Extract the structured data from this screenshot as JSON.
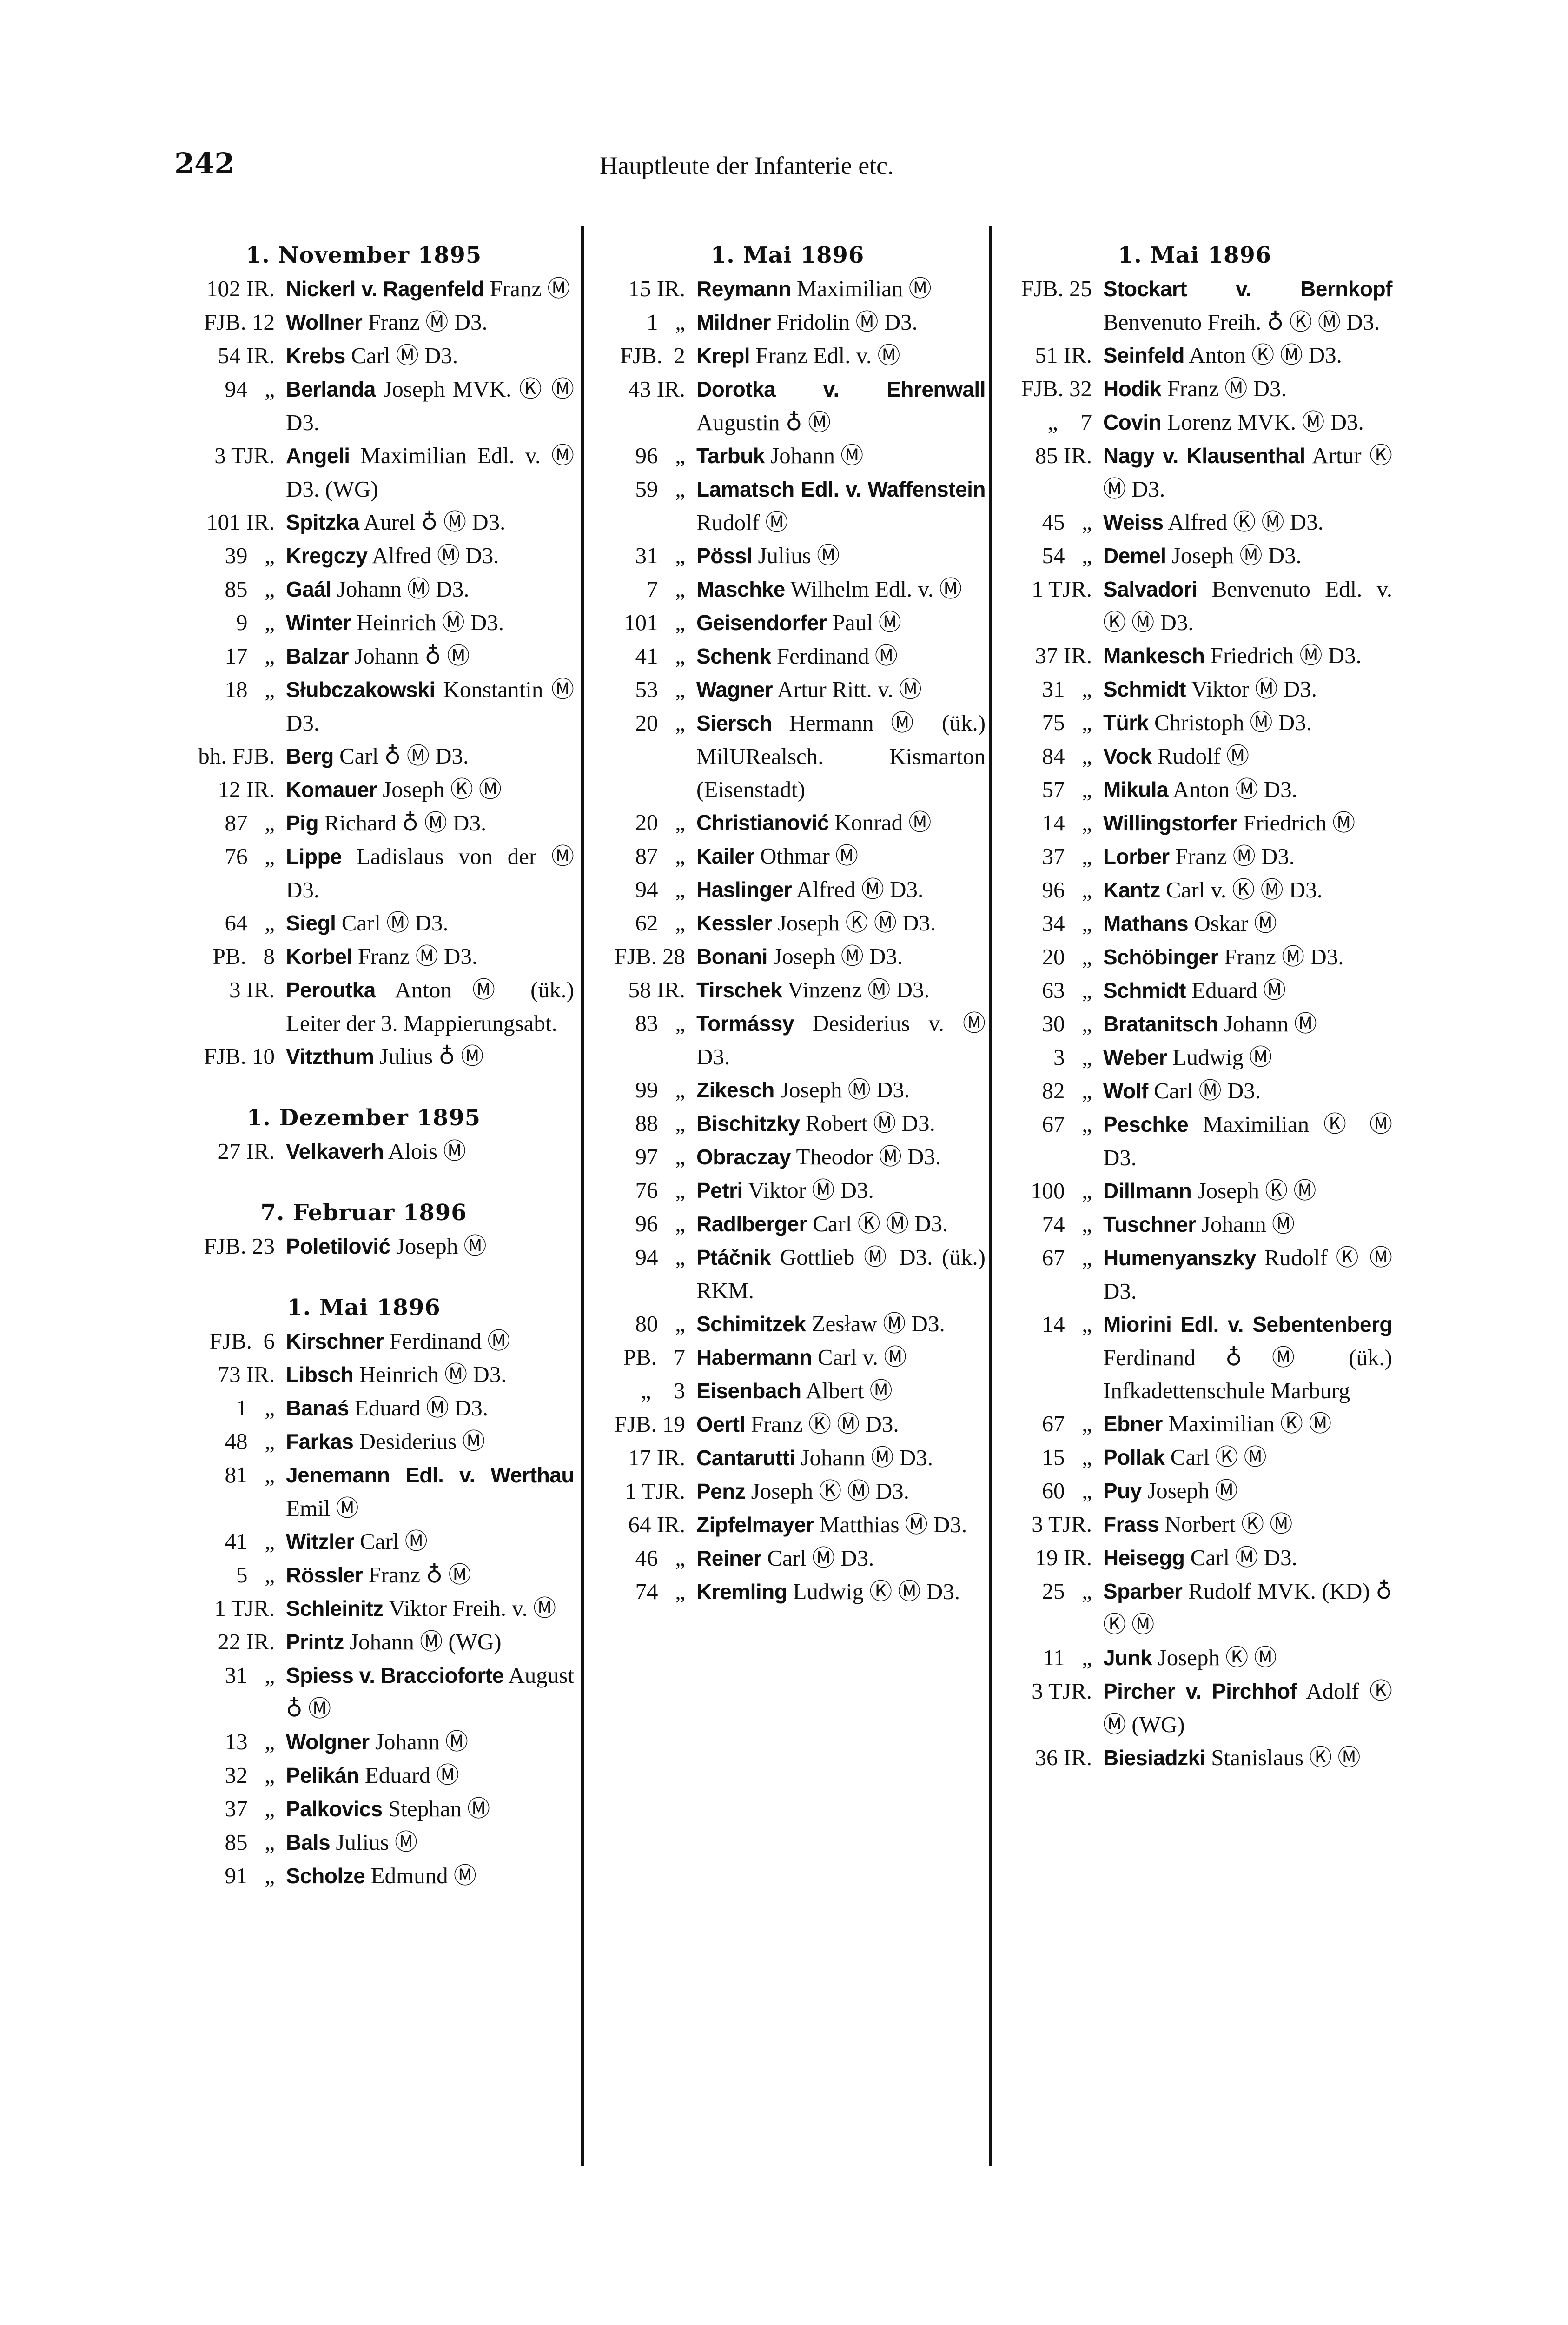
{
  "page_number": "242",
  "running_head": "Hauptleute der Infanterie etc.",
  "symbols": {
    "Ⓜ": "medal-m-icon",
    "Ⓚ": "medal-k-icon",
    "♁": "crowned-order-icon"
  },
  "columns": [
    {
      "sections": [
        {
          "heading": "1. November 1895",
          "entries": [
            {
              "ref": "102 IR.",
              "name": "Nickerl v. Ragenfeld",
              "rest": "Franz Ⓜ"
            },
            {
              "ref": "FJB. 12",
              "name": "Wollner",
              "rest": "Franz Ⓜ D3."
            },
            {
              "ref": "54 IR.",
              "name": "Krebs",
              "rest": "Carl Ⓜ D3."
            },
            {
              "ref": "94   „",
              "name": "Berlanda",
              "rest": "Joseph MVK. Ⓚ Ⓜ D3."
            },
            {
              "ref": "3 TJR.",
              "name": "Angeli",
              "rest": "Maximilian Edl. v. Ⓜ D3. (WG)"
            },
            {
              "ref": "101 IR.",
              "name": "Spitzka",
              "rest": "Aurel ♁ Ⓜ D3."
            },
            {
              "ref": "39   „",
              "name": "Kregczy",
              "rest": "Alfred Ⓜ D3."
            },
            {
              "ref": "85   „",
              "name": "Gaál",
              "rest": "Johann Ⓜ D3."
            },
            {
              "ref": "9   „",
              "name": "Winter",
              "rest": "Heinrich Ⓜ D3."
            },
            {
              "ref": "17   „",
              "name": "Balzar",
              "rest": "Johann ♁ Ⓜ"
            },
            {
              "ref": "18   „",
              "name": "Słubczakowski",
              "rest": "Kon­stantin Ⓜ D3."
            },
            {
              "ref": "bh. FJB.",
              "name": "Berg",
              "rest": "Carl ♁ Ⓜ D3."
            },
            {
              "ref": "12 IR.",
              "name": "Komauer",
              "rest": "Joseph Ⓚ Ⓜ"
            },
            {
              "ref": "87   „",
              "name": "Pig",
              "rest": "Richard ♁ Ⓜ D3."
            },
            {
              "ref": "76   „",
              "name": "Lippe",
              "rest": "Ladislaus von der Ⓜ D3."
            },
            {
              "ref": "64   „",
              "name": "Siegl",
              "rest": "Carl Ⓜ D3."
            },
            {
              "ref": "PB.   8",
              "name": "Korbel",
              "rest": "Franz Ⓜ D3."
            },
            {
              "ref": "3 IR.",
              "name": "Peroutka",
              "rest": "Anton Ⓜ (ük.) Leiter der 3. Map­pierungsabt."
            },
            {
              "ref": "FJB. 10",
              "name": "Vitzthum",
              "rest": "Julius ♁ Ⓜ"
            }
          ]
        },
        {
          "heading": "1. Dezember 1895",
          "entries": [
            {
              "ref": "27 IR.",
              "name": "Velkaverh",
              "rest": "Alois Ⓜ"
            }
          ]
        },
        {
          "heading": "7. Februar 1896",
          "entries": [
            {
              "ref": "FJB. 23",
              "name": "Poletilović",
              "rest": "Joseph Ⓜ"
            }
          ]
        },
        {
          "heading": "1. Mai 1896",
          "entries": [
            {
              "ref": "FJB.  6",
              "name": "Kirschner",
              "rest": "Ferdinand Ⓜ"
            },
            {
              "ref": "73 IR.",
              "name": "Libsch",
              "rest": "Heinrich Ⓜ D3."
            },
            {
              "ref": "1   „",
              "name": "Banaś",
              "rest": "Eduard Ⓜ D3."
            },
            {
              "ref": "48   „",
              "name": "Farkas",
              "rest": "Desiderius Ⓜ"
            },
            {
              "ref": "81   „",
              "name": "Jenemann Edl. v. Wer­thau",
              "rest": "Emil Ⓜ"
            },
            {
              "ref": "41   „",
              "name": "Witzler",
              "rest": "Carl Ⓜ"
            },
            {
              "ref": "5   „",
              "name": "Rössler",
              "rest": "Franz ♁ Ⓜ"
            },
            {
              "ref": "1 TJR.",
              "name": "Schleinitz",
              "rest": "Viktor Freih. v. Ⓜ"
            },
            {
              "ref": "22 IR.",
              "name": "Printz",
              "rest": "Johann Ⓜ (WG)"
            },
            {
              "ref": "31   „",
              "name": "Spiess v. Braccioforte",
              "rest": "August ♁ Ⓜ"
            },
            {
              "ref": "13   „",
              "name": "Wolgner",
              "rest": "Johann Ⓜ"
            },
            {
              "ref": "32   „",
              "name": "Pelikán",
              "rest": "Eduard Ⓜ"
            },
            {
              "ref": "37   „",
              "name": "Palkovics",
              "rest": "Stephan Ⓜ"
            },
            {
              "ref": "85   „",
              "name": "Bals",
              "rest": "Julius Ⓜ"
            },
            {
              "ref": "91   „",
              "name": "Scholze",
              "rest": "Edmund Ⓜ"
            }
          ]
        }
      ]
    },
    {
      "sections": [
        {
          "heading": "1. Mai 1896",
          "entries": [
            {
              "ref": "15 IR.",
              "name": "Reymann",
              "rest": "Maximilian Ⓜ"
            },
            {
              "ref": "1   „",
              "name": "Mildner",
              "rest": "Fridolin Ⓜ D3."
            },
            {
              "ref": "FJB.  2",
              "name": "Krepl",
              "rest": "Franz Edl. v. Ⓜ"
            },
            {
              "ref": "43 IR.",
              "name": "Dorotka v. Ehrenwall",
              "rest": "Augustin ♁ Ⓜ"
            },
            {
              "ref": "96   „",
              "name": "Tarbuk",
              "rest": "Johann Ⓜ"
            },
            {
              "ref": "59   „",
              "name": "Lamatsch Edl. v. Waffenstein",
              "rest": "Rudolf Ⓜ"
            },
            {
              "ref": "31   „",
              "name": "Pössl",
              "rest": "Julius Ⓜ"
            },
            {
              "ref": "7   „",
              "name": "Maschke",
              "rest": "Wilhelm Edl. v. Ⓜ"
            },
            {
              "ref": "101   „",
              "name": "Geisendorfer",
              "rest": "Paul Ⓜ"
            },
            {
              "ref": "41   „",
              "name": "Schenk",
              "rest": "Ferdinand Ⓜ"
            },
            {
              "ref": "53   „",
              "name": "Wagner",
              "rest": "Artur Ritt. v. Ⓜ"
            },
            {
              "ref": "20   „",
              "name": "Siersch",
              "rest": "Hermann Ⓜ (ük.) MilURealsch. Kismarton (Eisenstadt)"
            },
            {
              "ref": "20   „",
              "name": "Christianović",
              "rest": "Konrad Ⓜ"
            },
            {
              "ref": "87   „",
              "name": "Kailer",
              "rest": "Othmar Ⓜ"
            },
            {
              "ref": "94   „",
              "name": "Haslinger",
              "rest": "Alfred Ⓜ D3."
            },
            {
              "ref": "62   „",
              "name": "Kessler",
              "rest": "Joseph Ⓚ Ⓜ D3."
            },
            {
              "ref": "FJB. 28",
              "name": "Bonani",
              "rest": "Joseph Ⓜ D3."
            },
            {
              "ref": "58 IR.",
              "name": "Tirschek",
              "rest": "Vinzenz Ⓜ D3."
            },
            {
              "ref": "83   „",
              "name": "Tormássy",
              "rest": "Desiderius v. Ⓜ D3."
            },
            {
              "ref": "99   „",
              "name": "Zikesch",
              "rest": "Joseph Ⓜ D3."
            },
            {
              "ref": "88   „",
              "name": "Bischitzky",
              "rest": "Robert Ⓜ D3."
            },
            {
              "ref": "97   „",
              "name": "Obraczay",
              "rest": "Theodor Ⓜ D3."
            },
            {
              "ref": "76   „",
              "name": "Petri",
              "rest": "Viktor Ⓜ D3."
            },
            {
              "ref": "96   „",
              "name": "Radlberger",
              "rest": "Carl Ⓚ Ⓜ D3."
            },
            {
              "ref": "94   „",
              "name": "Ptáčnik",
              "rest": "Gottlieb Ⓜ D3. (ük.) RKM."
            },
            {
              "ref": "80   „",
              "name": "Schimitzek",
              "rest": "Zesław Ⓜ D3."
            },
            {
              "ref": "PB.   7",
              "name": "Habermann",
              "rest": "Carl v. Ⓜ"
            },
            {
              "ref": "„    3",
              "name": "Eisenbach",
              "rest": "Albert Ⓜ"
            },
            {
              "ref": "FJB. 19",
              "name": "Oertl",
              "rest": "Franz Ⓚ Ⓜ D3."
            },
            {
              "ref": "17 IR.",
              "name": "Cantarutti",
              "rest": "Johann Ⓜ D3."
            },
            {
              "ref": "1 TJR.",
              "name": "Penz",
              "rest": "Joseph Ⓚ Ⓜ D3."
            },
            {
              "ref": "64 IR.",
              "name": "Zipfelmayer",
              "rest": "Matthias Ⓜ D3."
            },
            {
              "ref": "46   „",
              "name": "Reiner",
              "rest": "Carl Ⓜ D3."
            },
            {
              "ref": "74   „",
              "name": "Kremling",
              "rest": "Ludwig Ⓚ Ⓜ D3."
            }
          ]
        }
      ]
    },
    {
      "sections": [
        {
          "heading": "1. Mai 1896",
          "entries": [
            {
              "ref": "FJB. 25",
              "name": "Stockart v. Bernkopf",
              "rest": "Benvenuto Freih. ♁ Ⓚ Ⓜ D3."
            },
            {
              "ref": "51 IR.",
              "name": "Seinfeld",
              "rest": "Anton Ⓚ Ⓜ D3."
            },
            {
              "ref": "FJB. 32",
              "name": "Hodik",
              "rest": "Franz Ⓜ D3."
            },
            {
              "ref": "„    7",
              "name": "Covin",
              "rest": "Lorenz MVK. Ⓜ D3."
            },
            {
              "ref": "85 IR.",
              "name": "Nagy v. Klausenthal",
              "rest": "Artur Ⓚ Ⓜ D3."
            },
            {
              "ref": "45   „",
              "name": "Weiss",
              "rest": "Alfred Ⓚ Ⓜ D3."
            },
            {
              "ref": "54   „",
              "name": "Demel",
              "rest": "Joseph Ⓜ D3."
            },
            {
              "ref": "1 TJR.",
              "name": "Salvadori",
              "rest": "Benvenuto Edl. v. Ⓚ Ⓜ D3."
            },
            {
              "ref": "37 IR.",
              "name": "Mankesch",
              "rest": "Friedrich Ⓜ D3."
            },
            {
              "ref": "31   „",
              "name": "Schmidt",
              "rest": "Viktor Ⓜ D3."
            },
            {
              "ref": "75   „",
              "name": "Türk",
              "rest": "Christoph Ⓜ D3."
            },
            {
              "ref": "84   „",
              "name": "Vock",
              "rest": "Rudolf Ⓜ"
            },
            {
              "ref": "57   „",
              "name": "Mikula",
              "rest": "Anton Ⓜ D3."
            },
            {
              "ref": "14   „",
              "name": "Willingstorfer",
              "rest": "Friedrich Ⓜ"
            },
            {
              "ref": "37   „",
              "name": "Lorber",
              "rest": "Franz Ⓜ D3."
            },
            {
              "ref": "96   „",
              "name": "Kantz",
              "rest": "Carl v. Ⓚ Ⓜ D3."
            },
            {
              "ref": "34   „",
              "name": "Mathans",
              "rest": "Oskar Ⓜ"
            },
            {
              "ref": "20   „",
              "name": "Schöbinger",
              "rest": "Franz Ⓜ D3."
            },
            {
              "ref": "63   „",
              "name": "Schmidt",
              "rest": "Eduard Ⓜ"
            },
            {
              "ref": "30   „",
              "name": "Bratanitsch",
              "rest": "Johann Ⓜ"
            },
            {
              "ref": "3   „",
              "name": "Weber",
              "rest": "Ludwig Ⓜ"
            },
            {
              "ref": "82   „",
              "name": "Wolf",
              "rest": "Carl Ⓜ D3."
            },
            {
              "ref": "67   „",
              "name": "Peschke",
              "rest": "Maximilian Ⓚ Ⓜ D3."
            },
            {
              "ref": "100   „",
              "name": "Dillmann",
              "rest": "Joseph Ⓚ Ⓜ"
            },
            {
              "ref": "74   „",
              "name": "Tuschner",
              "rest": "Johann Ⓜ"
            },
            {
              "ref": "67   „",
              "name": "Humenyanszky",
              "rest": "Rudolf Ⓚ Ⓜ D3."
            },
            {
              "ref": "14   „",
              "name": "Miorini Edl. v. Seben­tenberg",
              "rest": "Ferdinand ♁ Ⓜ (ük.) Infkadetten­schule Marburg"
            },
            {
              "ref": "67   „",
              "name": "Ebner",
              "rest": "Maximilian Ⓚ Ⓜ"
            },
            {
              "ref": "15   „",
              "name": "Pollak",
              "rest": "Carl Ⓚ Ⓜ"
            },
            {
              "ref": "60   „",
              "name": "Puy",
              "rest": "Joseph Ⓜ"
            },
            {
              "ref": "3 TJR.",
              "name": "Frass",
              "rest": "Norbert Ⓚ Ⓜ"
            },
            {
              "ref": "19 IR.",
              "name": "Heisegg",
              "rest": "Carl Ⓜ D3."
            },
            {
              "ref": "25   „",
              "name": "Sparber",
              "rest": "Rudolf MVK. (KD) ♁ Ⓚ Ⓜ"
            },
            {
              "ref": "11   „",
              "name": "Junk",
              "rest": "Joseph Ⓚ Ⓜ"
            },
            {
              "ref": "3 TJR.",
              "name": "Pircher v. Pirchhof",
              "rest": "Adolf Ⓚ Ⓜ (WG)"
            },
            {
              "ref": "36 IR.",
              "name": "Biesiadzki",
              "rest": "Stanislaus Ⓚ Ⓜ"
            }
          ]
        }
      ]
    }
  ]
}
